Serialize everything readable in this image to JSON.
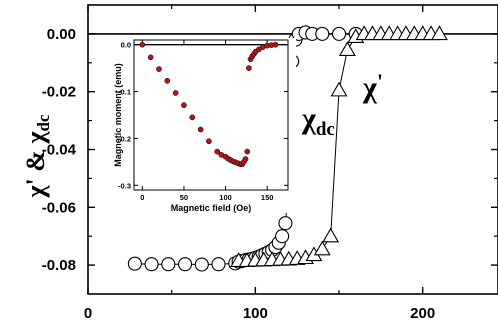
{
  "chart_data": [
    {
      "type": "scatter",
      "title": "",
      "xlabel": "",
      "ylabel": "χ' & χdc",
      "ylabel_parts": {
        "chi": "χ",
        "prime": "'",
        "amp": " & ",
        "chi2": "χ",
        "sub": "dc"
      },
      "xlim": [
        0,
        245
      ],
      "ylim": [
        -0.09,
        0.01
      ],
      "x_ticks": [
        "0",
        "100",
        "200"
      ],
      "y_ticks": [
        "0.00",
        "-0.02",
        "-0.04",
        "-0.06",
        "-0.08"
      ],
      "grid": false,
      "reference_line_y": 0,
      "annotations": [
        {
          "series": "χdc",
          "base": "χ",
          "sub": "dc"
        },
        {
          "series": "χ'",
          "base": "χ",
          "sup": "'"
        }
      ],
      "series": [
        {
          "name": "χdc",
          "marker": "open-circle",
          "x": [
            28,
            38,
            48,
            58,
            68,
            78,
            88,
            90,
            92,
            94,
            96,
            98,
            100,
            102,
            104,
            106,
            108,
            110,
            112,
            114,
            116,
            118,
            120,
            122,
            124,
            126,
            130,
            134,
            140,
            150,
            160
          ],
          "y": [
            -0.0795,
            -0.0797,
            -0.0797,
            -0.0797,
            -0.0798,
            -0.0797,
            -0.0794,
            -0.0788,
            -0.0786,
            -0.0783,
            -0.0781,
            -0.0778,
            -0.0775,
            -0.0771,
            -0.0766,
            -0.0761,
            -0.0755,
            -0.0748,
            -0.0738,
            -0.0723,
            -0.07,
            -0.0655,
            -0.0505,
            -0.0095,
            -0.002,
            0.0,
            0.0005,
            0.0,
            0.0,
            0.0,
            0.0
          ]
        },
        {
          "name": "χ'",
          "marker": "open-triangle",
          "x": [
            90,
            95,
            100,
            105,
            110,
            115,
            120,
            125,
            130,
            135,
            140,
            145,
            150,
            155,
            160,
            165,
            170,
            175,
            180,
            185,
            190,
            195,
            200,
            205,
            210
          ],
          "y": [
            -0.0785,
            -0.0785,
            -0.0784,
            -0.0783,
            -0.0782,
            -0.0781,
            -0.078,
            -0.0778,
            -0.0775,
            -0.0765,
            -0.0745,
            -0.07,
            -0.0195,
            -0.0055,
            -0.001,
            0.0,
            0.0,
            0.0,
            0.0,
            0.0,
            0.0,
            0.0,
            0.0,
            0.0,
            0.0
          ]
        }
      ]
    },
    {
      "type": "scatter",
      "title": "",
      "xlabel": "Magnetic field (Oe)",
      "ylabel": "Magnetic moment (emu)",
      "xlim": [
        -10,
        175
      ],
      "ylim": [
        -0.31,
        0.01
      ],
      "x_ticks": [
        "0",
        "50",
        "100",
        "150"
      ],
      "y_ticks": [
        "0.0",
        "-0.1",
        "-0.2",
        "-0.3"
      ],
      "reference_line_y": 0,
      "series": [
        {
          "name": "",
          "marker": "filled-circle",
          "color": "#b3141a",
          "x": [
            0,
            10,
            20,
            30,
            40,
            50,
            60,
            70,
            80,
            90,
            95,
            100,
            103,
            106,
            109,
            112,
            115,
            118,
            120,
            122,
            124,
            126,
            128,
            130,
            132,
            134,
            136,
            140,
            145,
            150,
            155,
            160
          ],
          "y": [
            0.0,
            -0.027,
            -0.052,
            -0.077,
            -0.103,
            -0.129,
            -0.155,
            -0.181,
            -0.206,
            -0.228,
            -0.235,
            -0.239,
            -0.243,
            -0.246,
            -0.249,
            -0.251,
            -0.253,
            -0.255,
            -0.255,
            -0.25,
            -0.244,
            -0.228,
            -0.05,
            -0.031,
            -0.025,
            -0.02,
            -0.015,
            -0.01,
            -0.005,
            -0.002,
            -0.001,
            0.0
          ]
        }
      ]
    }
  ]
}
